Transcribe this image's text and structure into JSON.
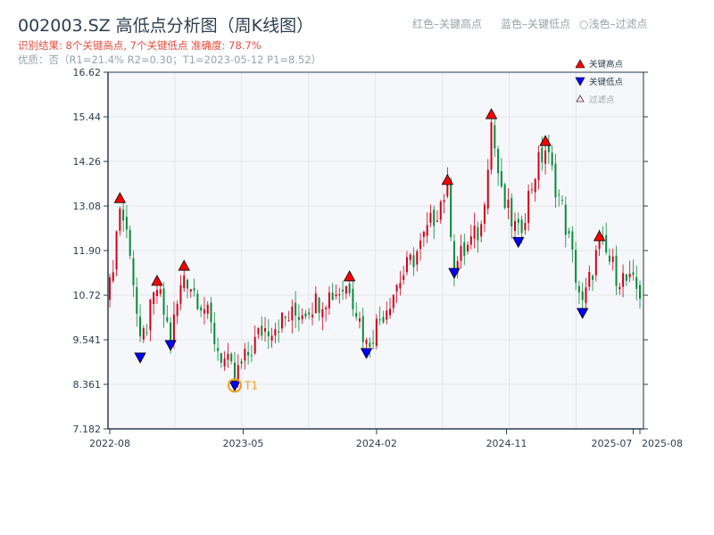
{
  "header": {
    "title": "002003.SZ 高低点分析图（周K线图）",
    "result_line": "识别结果: 8个关键高点, 7个关键低点  准确度: 78.7%",
    "quality_line": "优质：否（R1=21.4%  R2=0.30；T1=2023-05-12 P1=8.52）",
    "legend_high": "红色–关键高点",
    "legend_low": "蓝色–关键低点",
    "legend_filtered": "○浅色–过滤点"
  },
  "colors": {
    "up": "#d0021b",
    "down": "#0a8a3a",
    "high_marker": "#ff0000",
    "low_marker": "#0000ff",
    "t1": "#f39c12",
    "axis": "#2c3e50"
  },
  "chart_data": {
    "type": "candlestick",
    "ylim": [
      7.182,
      16.62
    ],
    "yticks": [
      "7.182",
      "8.361",
      "9.541",
      "10.72",
      "11.90",
      "13.08",
      "14.26",
      "15.44",
      "16.62"
    ],
    "xticks": [
      {
        "label": "2022-08",
        "week": 0
      },
      {
        "label": "2023-05",
        "week": 39.5
      },
      {
        "label": "2024-02",
        "week": 79
      },
      {
        "label": "2024-11",
        "week": 117.5
      },
      {
        "label": "2025-07",
        "week": 155
      },
      {
        "label": "2025-08",
        "week": 157
      }
    ],
    "weeks": 158,
    "price_path": [
      [
        0,
        10.9
      ],
      [
        3,
        13.1
      ],
      [
        6,
        12.0
      ],
      [
        9,
        9.3
      ],
      [
        14,
        10.9
      ],
      [
        18,
        9.6
      ],
      [
        22,
        11.3
      ],
      [
        28,
        10.4
      ],
      [
        32,
        9.3
      ],
      [
        37,
        8.52
      ],
      [
        45,
        9.8
      ],
      [
        55,
        10.2
      ],
      [
        60,
        10.5
      ],
      [
        71,
        11.0
      ],
      [
        76,
        9.4
      ],
      [
        85,
        11.0
      ],
      [
        92,
        12.0
      ],
      [
        100,
        13.6
      ],
      [
        102,
        11.5
      ],
      [
        110,
        12.5
      ],
      [
        113,
        15.3
      ],
      [
        116,
        13.3
      ],
      [
        121,
        12.3
      ],
      [
        126,
        14.0
      ],
      [
        129,
        14.6
      ],
      [
        134,
        13.0
      ],
      [
        140,
        10.4
      ],
      [
        145,
        12.1
      ],
      [
        150,
        11.3
      ],
      [
        157,
        10.8
      ]
    ],
    "key_highs": [
      [
        3,
        13.1
      ],
      [
        14,
        10.91
      ],
      [
        22,
        11.31
      ],
      [
        71,
        11.03
      ],
      [
        100,
        13.58
      ],
      [
        113,
        15.32
      ],
      [
        129,
        14.61
      ],
      [
        145,
        12.09
      ]
    ],
    "key_lows": [
      [
        9,
        9.26
      ],
      [
        18,
        9.59
      ],
      [
        37,
        8.52
      ],
      [
        76,
        9.38
      ],
      [
        102,
        11.5
      ],
      [
        121,
        12.32
      ],
      [
        140,
        10.44
      ]
    ],
    "t1": {
      "label": "T1",
      "date": "2023-05-12",
      "week": 37,
      "price": 8.52
    },
    "legend": {
      "high": "关键高点",
      "low": "关键低点",
      "filtered": "过滤点"
    }
  }
}
